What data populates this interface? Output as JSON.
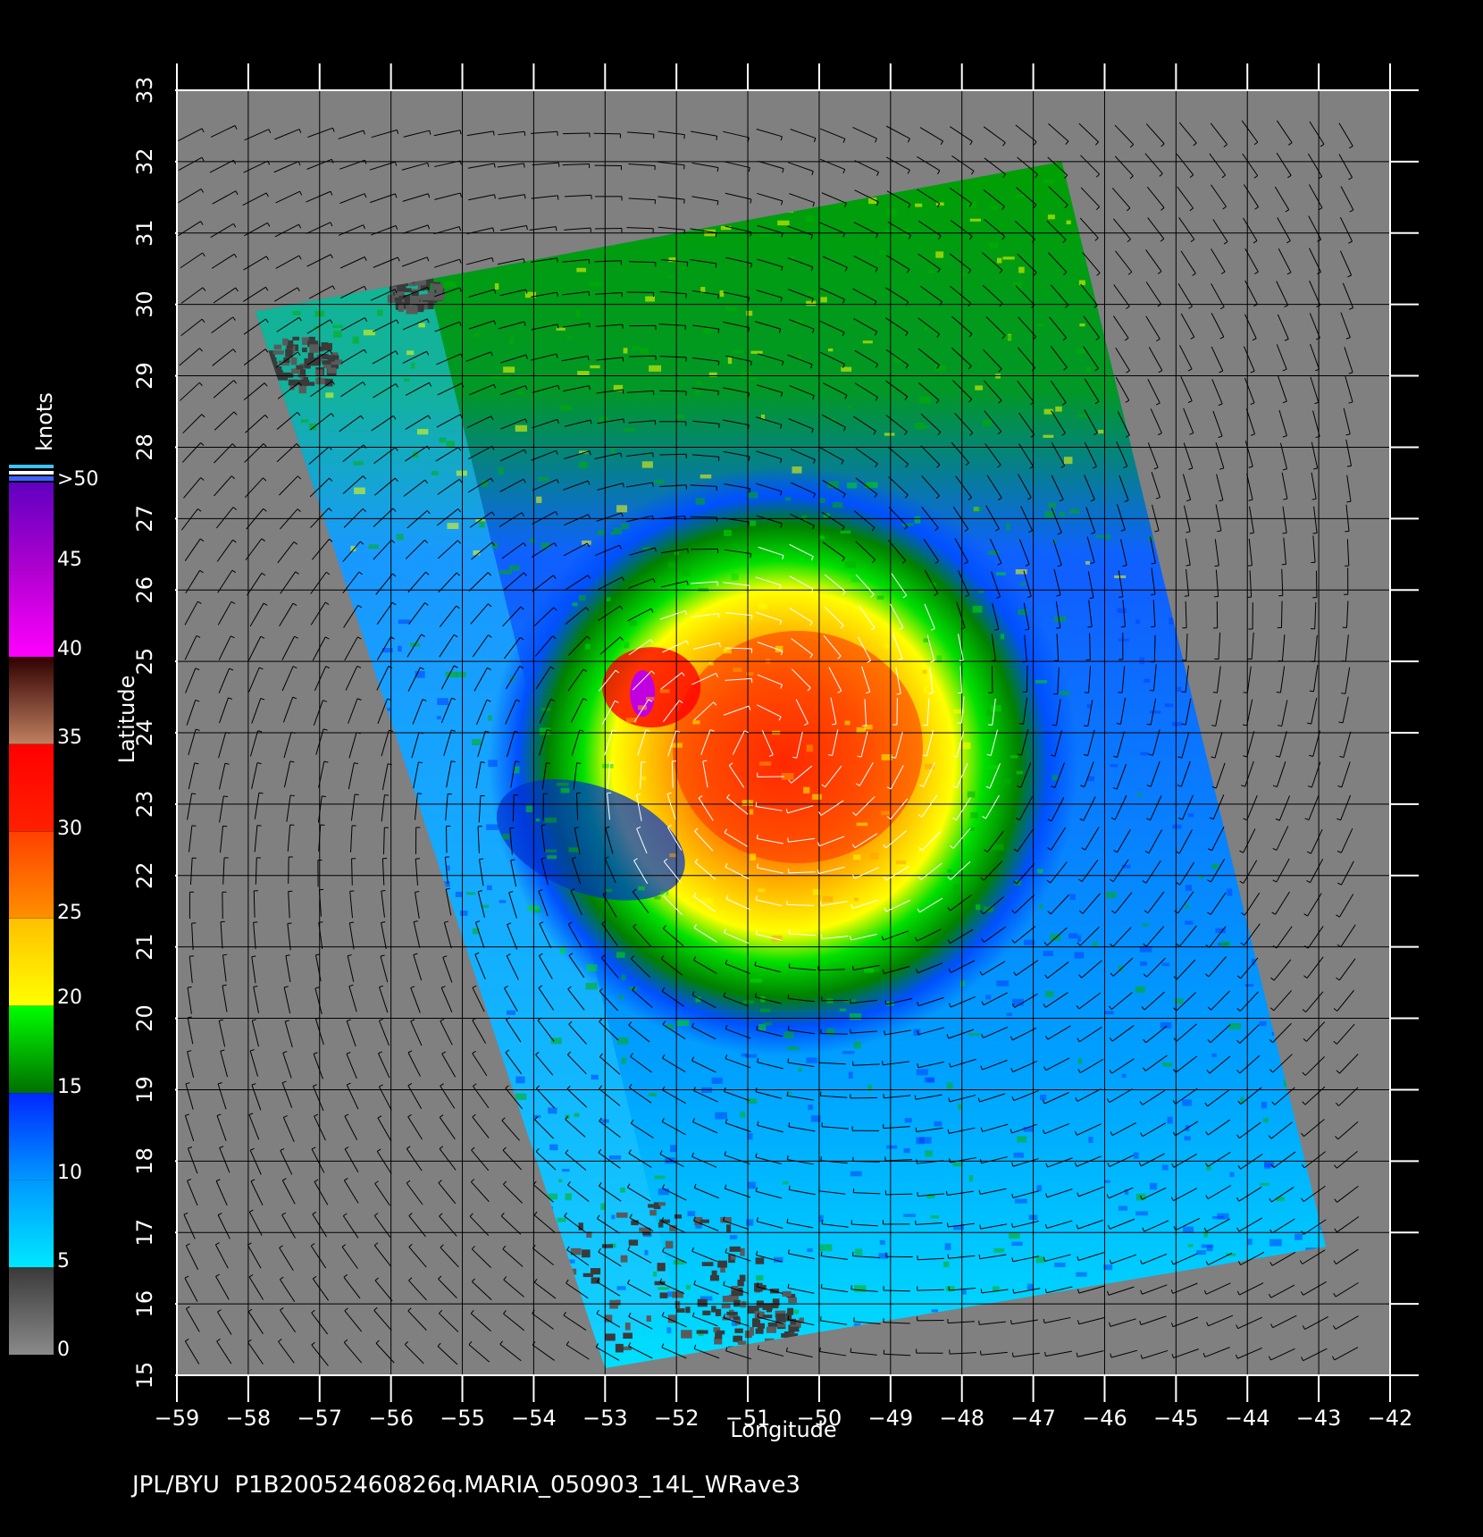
{
  "figure": {
    "footer_text": "JPL/BYU  P1B20052460826q.MARIA_050903_14L_WRave3",
    "colors": {
      "background": "#000000",
      "land_nodata": "#808080",
      "grid": "#000000",
      "axis": "#ffffff"
    }
  },
  "chart_data": {
    "type": "heatmap",
    "subject": "MARIA_050903_14L",
    "xlabel": "Longitude",
    "ylabel": "Latitude",
    "xlim": [
      -59,
      -42
    ],
    "ylim": [
      15,
      33
    ],
    "x_ticks": [
      "-59",
      "-58",
      "-57",
      "-56",
      "-55",
      "-54",
      "-53",
      "-52",
      "-51",
      "-50",
      "-49",
      "-48",
      "-47",
      "-46",
      "-45",
      "-44",
      "-43",
      "-42"
    ],
    "y_ticks": [
      "15",
      "16",
      "17",
      "18",
      "19",
      "20",
      "21",
      "22",
      "23",
      "24",
      "25",
      "26",
      "27",
      "28",
      "29",
      "30",
      "31",
      "32",
      "33"
    ],
    "swath_corners_lonlat": [
      [
        -57.9,
        29.9
      ],
      [
        -46.6,
        32.0
      ],
      [
        -42.9,
        16.8
      ],
      [
        -53.0,
        15.1
      ]
    ],
    "storm_center": {
      "lon": -52.1,
      "lat": 24.7
    },
    "colorbar": {
      "title": "knots",
      "labels": [
        ">50",
        "45",
        "40",
        "35",
        "30",
        "25",
        "20",
        "15",
        "10",
        "5",
        "0"
      ],
      "stops": [
        {
          "value": 0,
          "color": "#8a8a8a"
        },
        {
          "value": 5,
          "color": "#3a3a3a"
        },
        {
          "value": 5.01,
          "color": "#00e8ff"
        },
        {
          "value": 10,
          "color": "#0098ff"
        },
        {
          "value": 15,
          "color": "#0028ff"
        },
        {
          "value": 15.01,
          "color": "#007000"
        },
        {
          "value": 20,
          "color": "#00ff00"
        },
        {
          "value": 20.01,
          "color": "#ffff00"
        },
        {
          "value": 25,
          "color": "#ffc000"
        },
        {
          "value": 25.01,
          "color": "#ff9000"
        },
        {
          "value": 30,
          "color": "#ff4000"
        },
        {
          "value": 30.01,
          "color": "#ff2000"
        },
        {
          "value": 35,
          "color": "#ff0000"
        },
        {
          "value": 35.01,
          "color": "#c08060"
        },
        {
          "value": 40,
          "color": "#300000"
        },
        {
          "value": 40.01,
          "color": "#ff00ff"
        },
        {
          "value": 45,
          "color": "#b000d0"
        },
        {
          "value": 50,
          "color": "#6000c0"
        }
      ]
    }
  }
}
